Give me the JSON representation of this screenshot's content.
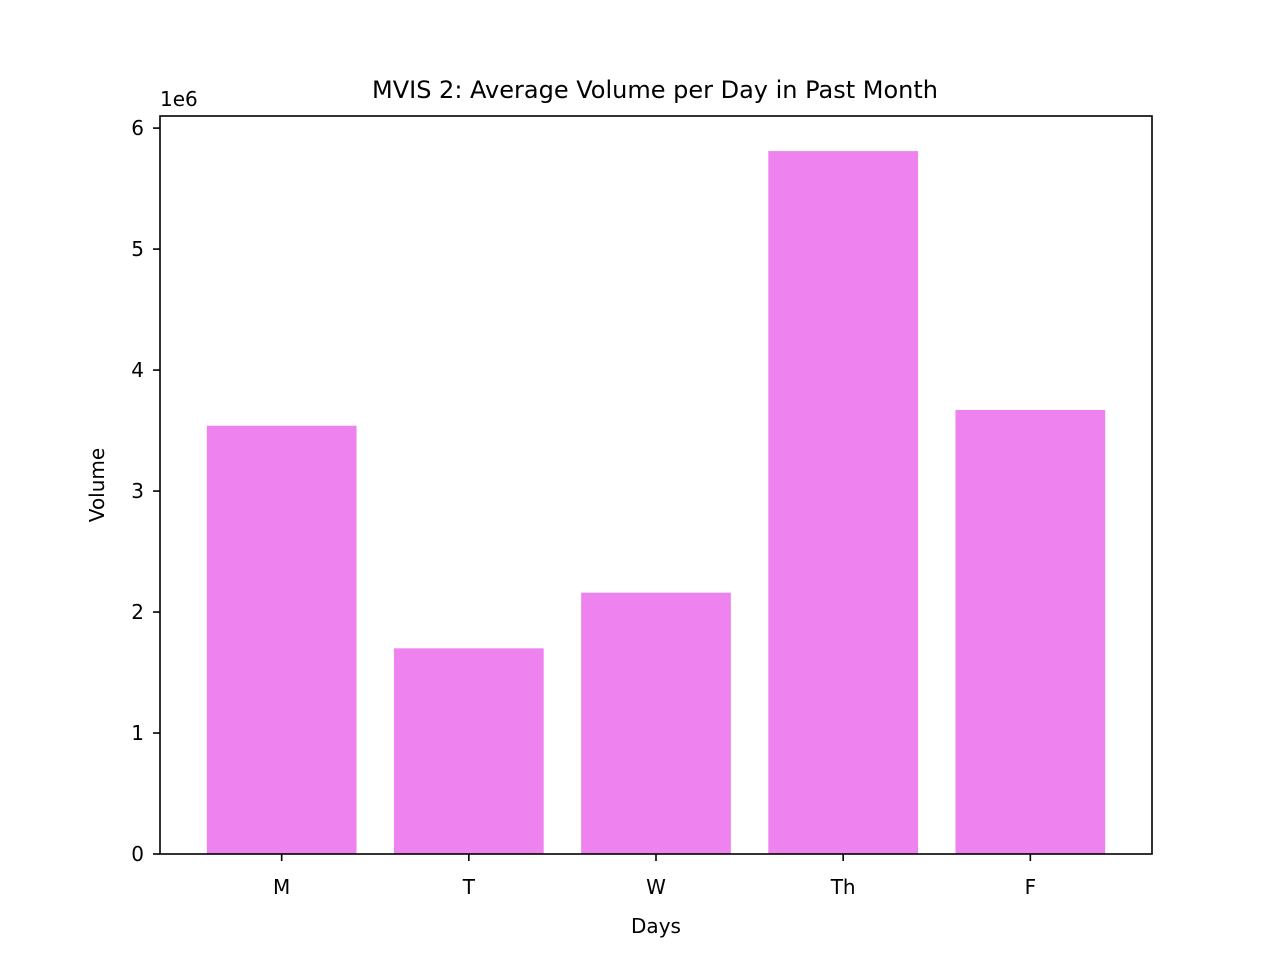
{
  "chart_data": {
    "type": "bar",
    "title": "MVIS 2: Average Volume per Day in Past Month",
    "xlabel": "Days",
    "ylabel": "Volume",
    "y_offset_label": "1e6",
    "y_scale": 1000000,
    "categories": [
      "M",
      "T",
      "W",
      "Th",
      "F"
    ],
    "values": [
      3540000,
      1700000,
      2160000,
      5810000,
      3670000
    ],
    "ylim": [
      0,
      6100000
    ],
    "yticks": [
      0,
      1,
      2,
      3,
      4,
      5,
      6
    ],
    "bar_color": "#ee82ee",
    "grid": false,
    "legend": "none"
  }
}
